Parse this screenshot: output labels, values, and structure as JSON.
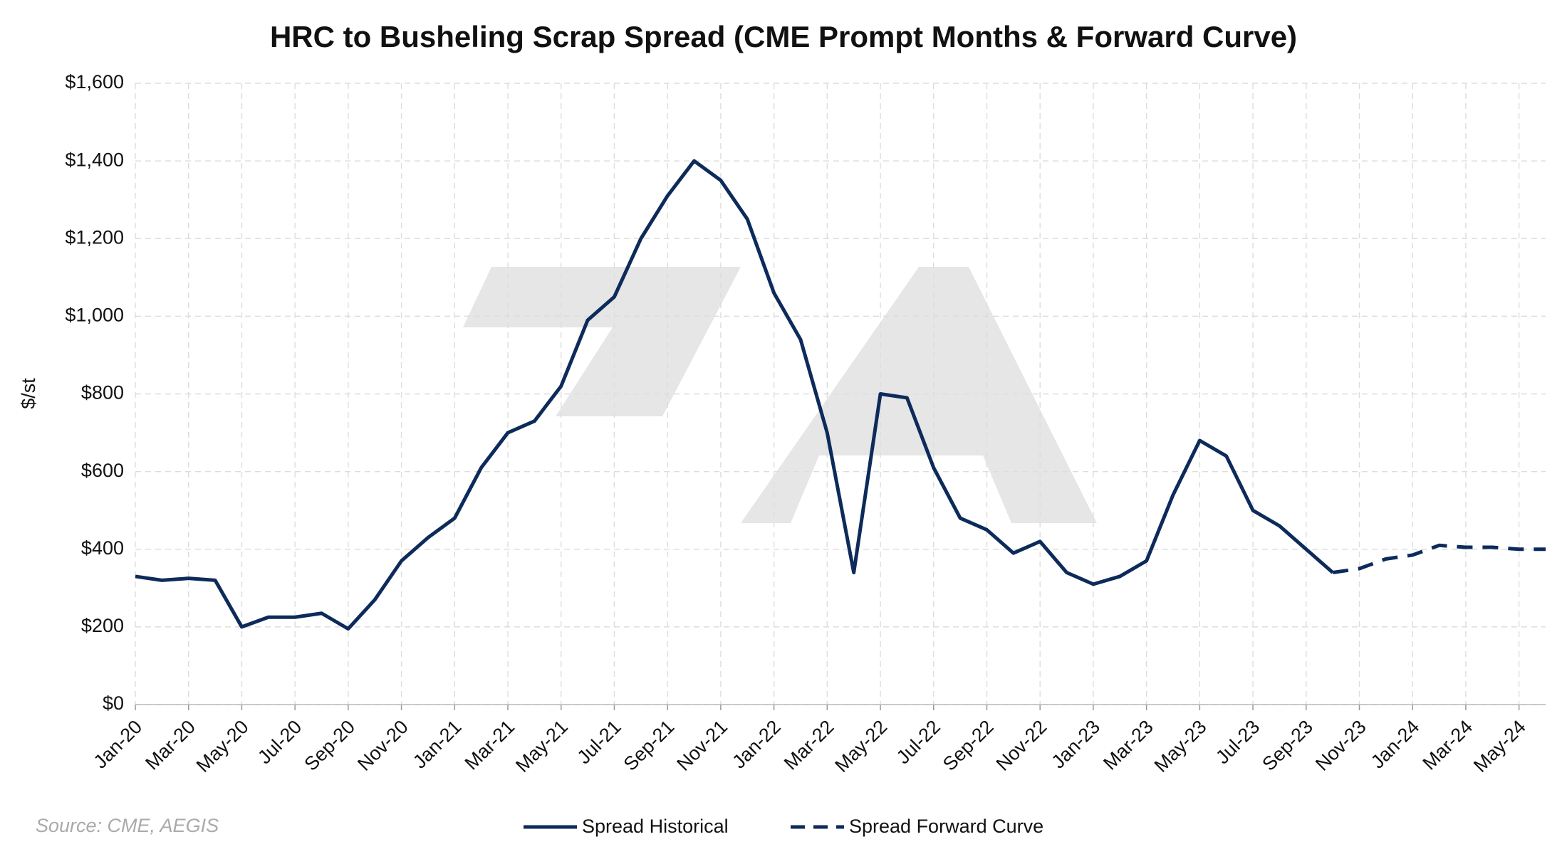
{
  "chart_data": {
    "type": "line",
    "title": "HRC to Busheling Scrap Spread (CME Prompt Months & Forward Curve)",
    "y_label": "$/st",
    "source": "Source: CME, AEGIS",
    "x": [
      "2020-01",
      "2020-02",
      "2020-03",
      "2020-04",
      "2020-05",
      "2020-06",
      "2020-07",
      "2020-08",
      "2020-09",
      "2020-10",
      "2020-11",
      "2020-12",
      "2021-01",
      "2021-02",
      "2021-03",
      "2021-04",
      "2021-05",
      "2021-06",
      "2021-07",
      "2021-08",
      "2021-09",
      "2021-10",
      "2021-11",
      "2021-12",
      "2022-01",
      "2022-02",
      "2022-03",
      "2022-04",
      "2022-05",
      "2022-06",
      "2022-07",
      "2022-08",
      "2022-09",
      "2022-10",
      "2022-11",
      "2022-12",
      "2023-01",
      "2023-02",
      "2023-03",
      "2023-04",
      "2023-05",
      "2023-06",
      "2023-07",
      "2023-08",
      "2023-09",
      "2023-10",
      "2023-11",
      "2023-12",
      "2024-01",
      "2024-02",
      "2024-03",
      "2024-04",
      "2024-05",
      "2024-06"
    ],
    "series": [
      {
        "name": "Spread Historical",
        "color": "#0d2b5a",
        "dash": false,
        "values": [
          330,
          320,
          325,
          320,
          200,
          225,
          225,
          235,
          195,
          270,
          370,
          430,
          480,
          610,
          700,
          730,
          820,
          990,
          1050,
          1200,
          1310,
          1400,
          1350,
          1250,
          1060,
          940,
          700,
          340,
          800,
          790,
          610,
          480,
          450,
          390,
          420,
          340,
          310,
          330,
          370,
          540,
          680,
          640,
          500,
          460,
          400,
          340,
          null,
          null,
          null,
          null,
          null,
          null,
          null,
          null
        ]
      },
      {
        "name": "Spread Forward Curve",
        "color": "#0d2b5a",
        "dash": true,
        "values": [
          null,
          null,
          null,
          null,
          null,
          null,
          null,
          null,
          null,
          null,
          null,
          null,
          null,
          null,
          null,
          null,
          null,
          null,
          null,
          null,
          null,
          null,
          null,
          null,
          null,
          null,
          null,
          null,
          null,
          null,
          null,
          null,
          null,
          null,
          null,
          null,
          null,
          null,
          null,
          null,
          null,
          null,
          null,
          null,
          null,
          340,
          350,
          375,
          385,
          410,
          405,
          405,
          400,
          400
        ]
      }
    ],
    "xlim": [
      "2020-01",
      "2024-06"
    ],
    "xticks": [
      {
        "value": "2020-01",
        "label": "Jan-20"
      },
      {
        "value": "2020-03",
        "label": "Mar-20"
      },
      {
        "value": "2020-05",
        "label": "May-20"
      },
      {
        "value": "2020-07",
        "label": "Jul-20"
      },
      {
        "value": "2020-09",
        "label": "Sep-20"
      },
      {
        "value": "2020-11",
        "label": "Nov-20"
      },
      {
        "value": "2021-01",
        "label": "Jan-21"
      },
      {
        "value": "2021-03",
        "label": "Mar-21"
      },
      {
        "value": "2021-05",
        "label": "May-21"
      },
      {
        "value": "2021-07",
        "label": "Jul-21"
      },
      {
        "value": "2021-09",
        "label": "Sep-21"
      },
      {
        "value": "2021-11",
        "label": "Nov-21"
      },
      {
        "value": "2022-01",
        "label": "Jan-22"
      },
      {
        "value": "2022-03",
        "label": "Mar-22"
      },
      {
        "value": "2022-05",
        "label": "May-22"
      },
      {
        "value": "2022-07",
        "label": "Jul-22"
      },
      {
        "value": "2022-09",
        "label": "Sep-22"
      },
      {
        "value": "2022-11",
        "label": "Nov-22"
      },
      {
        "value": "2023-01",
        "label": "Jan-23"
      },
      {
        "value": "2023-03",
        "label": "Mar-23"
      },
      {
        "value": "2023-05",
        "label": "May-23"
      },
      {
        "value": "2023-07",
        "label": "Jul-23"
      },
      {
        "value": "2023-09",
        "label": "Sep-23"
      },
      {
        "value": "2023-11",
        "label": "Nov-23"
      },
      {
        "value": "2024-01",
        "label": "Jan-24"
      },
      {
        "value": "2024-03",
        "label": "Mar-24"
      },
      {
        "value": "2024-05",
        "label": "May-24"
      }
    ],
    "ylim": [
      0,
      1600
    ],
    "yticks": [
      {
        "value": 0,
        "label": "$0"
      },
      {
        "value": 200,
        "label": "$200"
      },
      {
        "value": 400,
        "label": "$400"
      },
      {
        "value": 600,
        "label": "$600"
      },
      {
        "value": 800,
        "label": "$800"
      },
      {
        "value": 1000,
        "label": "$1,000"
      },
      {
        "value": 1200,
        "label": "$1,200"
      },
      {
        "value": 1400,
        "label": "$1,400"
      },
      {
        "value": 1600,
        "label": "$1,600"
      }
    ],
    "grid": true
  }
}
